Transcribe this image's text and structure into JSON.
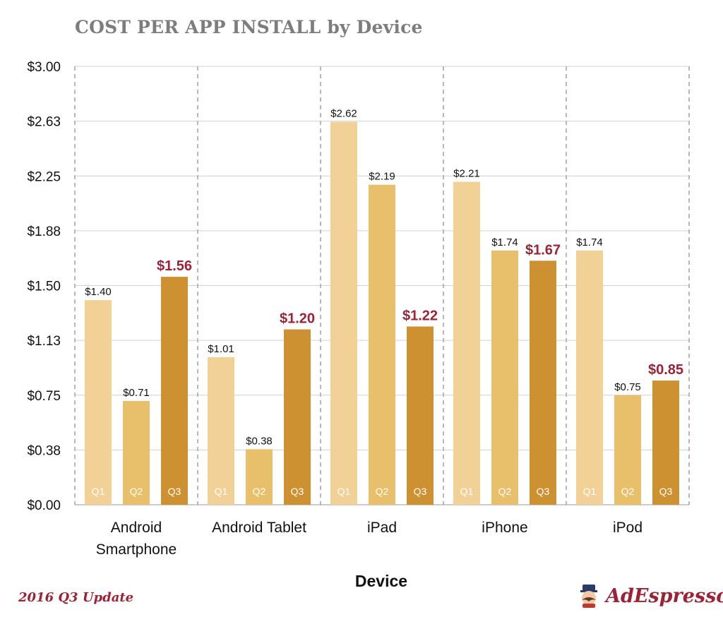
{
  "title": "COST PER APP INSTALL by Device",
  "footer": {
    "edition": "2016 Q3 Update",
    "brand": "AdEspresso"
  },
  "colors": {
    "q1": "#f2d196",
    "q2": "#e8bf6b",
    "q3": "#cd9131",
    "highlight": "#9b2335",
    "grid": "#d0d0d0",
    "separator": "#b8b8b8"
  },
  "chart_data": {
    "type": "bar",
    "title": "COST PER APP INSTALL by Device",
    "xlabel": "Device",
    "ylabel": "",
    "ylim": [
      0,
      3
    ],
    "y_ticks": [
      "$0.00",
      "$0.38",
      "$0.75",
      "$1.13",
      "$1.50",
      "$1.88",
      "$2.25",
      "$2.63",
      "$3.00"
    ],
    "categories": [
      [
        "Android",
        "Smartphone"
      ],
      [
        "Android Tablet"
      ],
      [
        "iPad"
      ],
      [
        "iPhone"
      ],
      [
        "iPod"
      ]
    ],
    "series": [
      {
        "name": "Q1",
        "values": [
          1.4,
          1.01,
          2.62,
          2.21,
          1.74
        ],
        "labels": [
          "$1.40",
          "$1.01",
          "$2.62",
          "$2.21",
          "$1.74"
        ]
      },
      {
        "name": "Q2",
        "values": [
          0.71,
          0.38,
          2.19,
          1.74,
          0.75
        ],
        "labels": [
          "$0.71",
          "$0.38",
          "$2.19",
          "$1.74",
          "$0.75"
        ]
      },
      {
        "name": "Q3",
        "values": [
          1.56,
          1.2,
          1.22,
          1.67,
          0.85
        ],
        "labels": [
          "$1.56",
          "$1.20",
          "$1.22",
          "$1.67",
          "$0.85"
        ]
      }
    ],
    "highlight_series": "Q3",
    "grid": true,
    "legend": "none"
  }
}
